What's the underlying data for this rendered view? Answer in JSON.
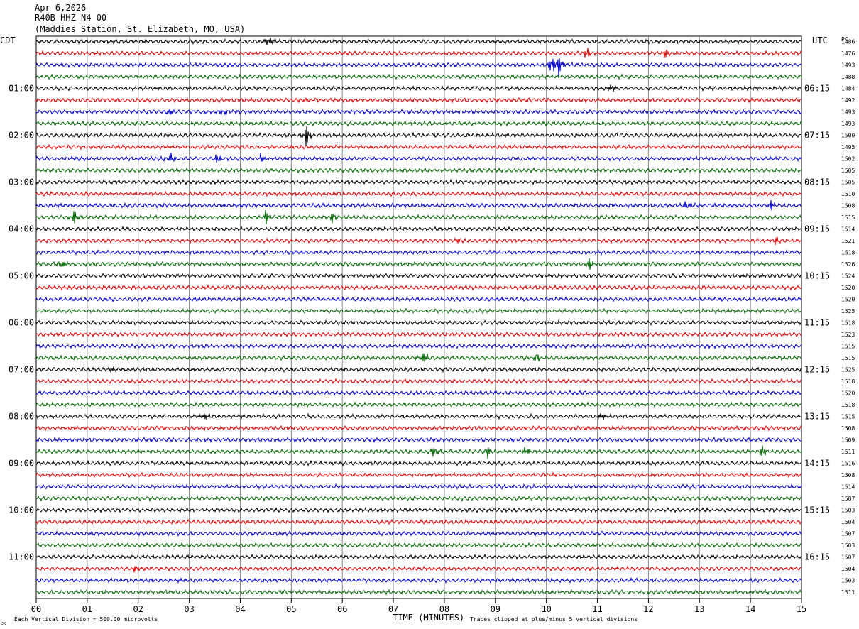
{
  "header": {
    "date": "Apr 6,2026",
    "channel": "R40B HHZ N4 00",
    "station": "(Maddies Station, St. Elizabeth, MO, USA)"
  },
  "labels": {
    "left_tz": "CDT",
    "right_tz": "UTC",
    "right_col": "PC"
  },
  "footer": {
    "scale": "Each Vertical Division =  500.00 microvolts",
    "xlabel": "TIME (MINUTES)",
    "clip": "Traces clipped at plus/minus 5 vertical divisions",
    "corner": "JK"
  },
  "colors": {
    "trace_cycle": [
      "#000000",
      "#dd0000",
      "#0000cc",
      "#006600"
    ],
    "grid": "#888888"
  },
  "chart_data": {
    "type": "line",
    "xlim": [
      0,
      15
    ],
    "x_ticks": [
      "00",
      "01",
      "02",
      "03",
      "04",
      "05",
      "06",
      "07",
      "08",
      "09",
      "10",
      "11",
      "12",
      "13",
      "14",
      "15"
    ],
    "rows": 48,
    "left_time_labels": [
      {
        "row": 4,
        "label": "01:00"
      },
      {
        "row": 8,
        "label": "02:00"
      },
      {
        "row": 12,
        "label": "03:00"
      },
      {
        "row": 16,
        "label": "04:00"
      },
      {
        "row": 20,
        "label": "05:00"
      },
      {
        "row": 24,
        "label": "06:00"
      },
      {
        "row": 28,
        "label": "07:00"
      },
      {
        "row": 32,
        "label": "08:00"
      },
      {
        "row": 36,
        "label": "09:00"
      },
      {
        "row": 40,
        "label": "10:00"
      },
      {
        "row": 44,
        "label": "11:00"
      }
    ],
    "right_time_labels": [
      {
        "row": 4,
        "label": "06:15"
      },
      {
        "row": 8,
        "label": "07:15"
      },
      {
        "row": 12,
        "label": "08:15"
      },
      {
        "row": 16,
        "label": "09:15"
      },
      {
        "row": 20,
        "label": "10:15"
      },
      {
        "row": 24,
        "label": "11:15"
      },
      {
        "row": 28,
        "label": "12:15"
      },
      {
        "row": 32,
        "label": "13:15"
      },
      {
        "row": 36,
        "label": "14:15"
      },
      {
        "row": 40,
        "label": "15:15"
      },
      {
        "row": 44,
        "label": "16:15"
      }
    ],
    "row_values": [
      "1486",
      "1476",
      "1493",
      "1488",
      "1484",
      "1492",
      "1493",
      "1493",
      "1500",
      "1495",
      "1502",
      "1505",
      "1505",
      "1510",
      "1508",
      "1515",
      "1514",
      "1521",
      "1518",
      "1526",
      "1524",
      "1520",
      "1520",
      "1525",
      "1518",
      "1523",
      "1515",
      "1515",
      "1525",
      "1518",
      "1520",
      "1518",
      "1515",
      "1508",
      "1509",
      "1511",
      "1516",
      "1508",
      "1514",
      "1507",
      "1503",
      "1504",
      "1507",
      "1503",
      "1507",
      "1504",
      "1503",
      "1511"
    ],
    "events": [
      {
        "row": 0,
        "t": 4.55,
        "amp": 10
      },
      {
        "row": 1,
        "t": 10.8,
        "amp": 8
      },
      {
        "row": 1,
        "t": 12.35,
        "amp": 7
      },
      {
        "row": 2,
        "t": 10.1,
        "amp": 12
      },
      {
        "row": 2,
        "t": 10.25,
        "amp": 16
      },
      {
        "row": 4,
        "t": 11.3,
        "amp": 8
      },
      {
        "row": 6,
        "t": 2.6,
        "amp": 6
      },
      {
        "row": 6,
        "t": 3.65,
        "amp": 6
      },
      {
        "row": 8,
        "t": 5.3,
        "amp": 16
      },
      {
        "row": 10,
        "t": 2.65,
        "amp": 8
      },
      {
        "row": 10,
        "t": 3.55,
        "amp": 8
      },
      {
        "row": 10,
        "t": 4.4,
        "amp": 6
      },
      {
        "row": 14,
        "t": 12.75,
        "amp": 6
      },
      {
        "row": 14,
        "t": 14.4,
        "amp": 7
      },
      {
        "row": 15,
        "t": 0.75,
        "amp": 12
      },
      {
        "row": 15,
        "t": 4.5,
        "amp": 9
      },
      {
        "row": 15,
        "t": 5.8,
        "amp": 7
      },
      {
        "row": 17,
        "t": 8.3,
        "amp": 5
      },
      {
        "row": 17,
        "t": 14.5,
        "amp": 6
      },
      {
        "row": 19,
        "t": 0.5,
        "amp": 8
      },
      {
        "row": 19,
        "t": 10.85,
        "amp": 8
      },
      {
        "row": 27,
        "t": 7.6,
        "amp": 10
      },
      {
        "row": 27,
        "t": 9.8,
        "amp": 7
      },
      {
        "row": 28,
        "t": 1.5,
        "amp": 5
      },
      {
        "row": 32,
        "t": 3.3,
        "amp": 5
      },
      {
        "row": 32,
        "t": 11.1,
        "amp": 6
      },
      {
        "row": 35,
        "t": 7.8,
        "amp": 9
      },
      {
        "row": 35,
        "t": 8.85,
        "amp": 8
      },
      {
        "row": 35,
        "t": 9.6,
        "amp": 7
      },
      {
        "row": 35,
        "t": 14.25,
        "amp": 11
      },
      {
        "row": 45,
        "t": 1.95,
        "amp": 6
      }
    ]
  }
}
